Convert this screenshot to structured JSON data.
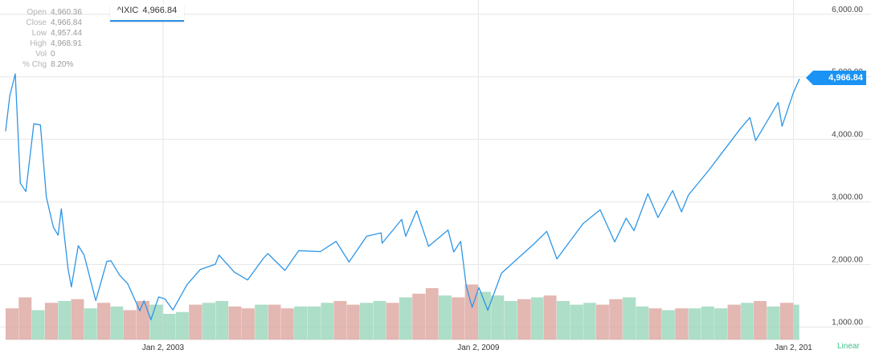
{
  "ohlc_panel": {
    "rows": [
      {
        "label": "Open",
        "value": "4,960.36"
      },
      {
        "label": "Close",
        "value": "4,966.84"
      },
      {
        "label": "Low",
        "value": "4,957.44"
      },
      {
        "label": "High",
        "value": "4,968.91"
      },
      {
        "label": "Vol",
        "value": "0"
      },
      {
        "label": "% Chg",
        "value": "8.20%"
      }
    ]
  },
  "ticker": {
    "symbol": "^IXIC",
    "price": "4,966.84"
  },
  "price_flag": "4,966.84",
  "scale_mode": "Linear",
  "colors": {
    "line": "#2d96e6",
    "volume_up": "#9fd8bd",
    "volume_down": "#deaaa4",
    "grid": "#e6e6e6",
    "flag": "#1a93f5"
  },
  "chart_data": {
    "type": "line",
    "series": [
      {
        "x": [
          "2000-01-03",
          "2000-02-01",
          "2000-03-10",
          "2000-04-14",
          "2000-05-23",
          "2000-07-17",
          "2000-09-01",
          "2000-10-12",
          "2000-11-30",
          "2001-01-02",
          "2001-01-24",
          "2001-03-12",
          "2001-04-04",
          "2001-05-22",
          "2001-07-02",
          "2001-09-21",
          "2001-12-07",
          "2002-01-04",
          "2002-03-05",
          "2002-05-01",
          "2002-07-24",
          "2002-08-22",
          "2002-10-09",
          "2002-12-02",
          "2003-01-14",
          "2003-03-11",
          "2003-06-18",
          "2003-09-18",
          "2003-12-31",
          "2004-01-26",
          "2004-05-10",
          "2004-08-12",
          "2004-11-30",
          "2004-12-30",
          "2005-04-28",
          "2005-08-02",
          "2005-12-30",
          "2006-04-19",
          "2006-07-18",
          "2006-11-17",
          "2007-02-26",
          "2007-03-05",
          "2007-07-19",
          "2007-08-16",
          "2007-10-31",
          "2008-01-22",
          "2008-06-05",
          "2008-07-15",
          "2008-09-01",
          "2008-10-10",
          "2008-11-20",
          "2009-01-06",
          "2009-03-09",
          "2009-06-12",
          "2010-01-19",
          "2010-04-23",
          "2010-07-02",
          "2010-12-31",
          "2011-04-29",
          "2011-08-08",
          "2011-10-27",
          "2011-12-20",
          "2012-03-26",
          "2012-06-04",
          "2012-09-14",
          "2012-11-15",
          "2013-01-02",
          "2013-05-21",
          "2013-12-31",
          "2014-03-05",
          "2014-04-14",
          "2014-09-18",
          "2014-10-15",
          "2014-12-31",
          "2015-02-13"
        ],
        "y": [
          4130,
          4700,
          5048,
          3300,
          3165,
          4250,
          4230,
          3075,
          2597,
          2470,
          2890,
          1930,
          1640,
          2300,
          2150,
          1423,
          2050,
          2060,
          1830,
          1690,
          1260,
          1420,
          1114,
          1480,
          1450,
          1272,
          1680,
          1920,
          2003,
          2150,
          1880,
          1752,
          2100,
          2175,
          1905,
          2220,
          2205,
          2370,
          2040,
          2450,
          2505,
          2340,
          2720,
          2450,
          2860,
          2290,
          2550,
          2200,
          2370,
          1650,
          1316,
          1630,
          1268,
          1860,
          2320,
          2530,
          2090,
          2653,
          2874,
          2360,
          2740,
          2540,
          3130,
          2750,
          3180,
          2840,
          3110,
          3500,
          4177,
          4350,
          3980,
          4590,
          4210,
          4736,
          4966.84
        ]
      }
    ],
    "volume": [
      {
        "date": "2000-01-03",
        "value": 1.7,
        "up": false
      },
      {
        "date": "2000-04-03",
        "value": 2.3,
        "up": false
      },
      {
        "date": "2000-07-03",
        "value": 1.6,
        "up": true
      },
      {
        "date": "2000-10-02",
        "value": 2.0,
        "up": false
      },
      {
        "date": "2001-01-02",
        "value": 2.1,
        "up": true
      },
      {
        "date": "2001-04-02",
        "value": 2.2,
        "up": false
      },
      {
        "date": "2001-07-02",
        "value": 1.7,
        "up": true
      },
      {
        "date": "2001-10-01",
        "value": 2.0,
        "up": false
      },
      {
        "date": "2002-01-02",
        "value": 1.8,
        "up": true
      },
      {
        "date": "2002-04-01",
        "value": 1.6,
        "up": false
      },
      {
        "date": "2002-07-01",
        "value": 2.1,
        "up": false
      },
      {
        "date": "2002-10-01",
        "value": 1.9,
        "up": true
      },
      {
        "date": "2003-01-02",
        "value": 1.4,
        "up": true
      },
      {
        "date": "2003-04-01",
        "value": 1.5,
        "up": true
      },
      {
        "date": "2003-07-01",
        "value": 1.9,
        "up": false
      },
      {
        "date": "2003-10-01",
        "value": 2.0,
        "up": true
      },
      {
        "date": "2004-01-02",
        "value": 2.1,
        "up": true
      },
      {
        "date": "2004-04-01",
        "value": 1.8,
        "up": false
      },
      {
        "date": "2004-07-01",
        "value": 1.7,
        "up": false
      },
      {
        "date": "2004-10-01",
        "value": 1.9,
        "up": true
      },
      {
        "date": "2005-01-03",
        "value": 1.9,
        "up": false
      },
      {
        "date": "2005-04-01",
        "value": 1.7,
        "up": false
      },
      {
        "date": "2005-07-01",
        "value": 1.8,
        "up": true
      },
      {
        "date": "2005-10-03",
        "value": 1.8,
        "up": true
      },
      {
        "date": "2006-01-03",
        "value": 2.0,
        "up": true
      },
      {
        "date": "2006-04-03",
        "value": 2.1,
        "up": false
      },
      {
        "date": "2006-07-03",
        "value": 1.9,
        "up": false
      },
      {
        "date": "2006-10-02",
        "value": 2.0,
        "up": true
      },
      {
        "date": "2007-01-03",
        "value": 2.1,
        "up": true
      },
      {
        "date": "2007-04-02",
        "value": 2.0,
        "up": false
      },
      {
        "date": "2007-07-02",
        "value": 2.3,
        "up": true
      },
      {
        "date": "2007-10-01",
        "value": 2.5,
        "up": false
      },
      {
        "date": "2008-01-02",
        "value": 2.8,
        "up": false
      },
      {
        "date": "2008-04-01",
        "value": 2.4,
        "up": true
      },
      {
        "date": "2008-07-01",
        "value": 2.3,
        "up": false
      },
      {
        "date": "2008-10-01",
        "value": 3.0,
        "up": false
      },
      {
        "date": "2009-01-02",
        "value": 2.6,
        "up": true
      },
      {
        "date": "2009-04-01",
        "value": 2.4,
        "up": true
      },
      {
        "date": "2009-07-01",
        "value": 2.1,
        "up": true
      },
      {
        "date": "2009-10-01",
        "value": 2.2,
        "up": false
      },
      {
        "date": "2010-01-04",
        "value": 2.3,
        "up": true
      },
      {
        "date": "2010-04-01",
        "value": 2.4,
        "up": false
      },
      {
        "date": "2010-07-01",
        "value": 2.1,
        "up": true
      },
      {
        "date": "2010-10-01",
        "value": 1.9,
        "up": true
      },
      {
        "date": "2011-01-03",
        "value": 2.0,
        "up": true
      },
      {
        "date": "2011-04-01",
        "value": 1.9,
        "up": false
      },
      {
        "date": "2011-07-01",
        "value": 2.2,
        "up": false
      },
      {
        "date": "2011-10-03",
        "value": 2.3,
        "up": true
      },
      {
        "date": "2012-01-03",
        "value": 1.8,
        "up": true
      },
      {
        "date": "2012-04-02",
        "value": 1.7,
        "up": false
      },
      {
        "date": "2012-07-02",
        "value": 1.6,
        "up": true
      },
      {
        "date": "2012-10-01",
        "value": 1.7,
        "up": false
      },
      {
        "date": "2013-01-02",
        "value": 1.7,
        "up": true
      },
      {
        "date": "2013-04-01",
        "value": 1.8,
        "up": true
      },
      {
        "date": "2013-07-01",
        "value": 1.7,
        "up": true
      },
      {
        "date": "2013-10-01",
        "value": 1.9,
        "up": false
      },
      {
        "date": "2014-01-02",
        "value": 2.0,
        "up": true
      },
      {
        "date": "2014-04-01",
        "value": 2.1,
        "up": false
      },
      {
        "date": "2014-07-01",
        "value": 1.8,
        "up": true
      },
      {
        "date": "2014-10-01",
        "value": 2.0,
        "up": false
      },
      {
        "date": "2015-01-02",
        "value": 1.9,
        "up": true
      }
    ],
    "x_ticks": [
      {
        "date": "2003-01-02",
        "label": "Jan 2, 2003"
      },
      {
        "date": "2009-01-02",
        "label": "Jan 2, 2009"
      },
      {
        "date": "2015-01-02",
        "label": "Jan 2, 201"
      }
    ],
    "y_ticks": [
      {
        "value": 1000,
        "label": "1,000.00"
      },
      {
        "value": 2000,
        "label": "2,000.00"
      },
      {
        "value": 3000,
        "label": "3,000.00"
      },
      {
        "value": 4000,
        "label": "4,000.00"
      },
      {
        "value": 5000,
        "label": "5,000.00"
      },
      {
        "value": 6000,
        "label": "6,000.00"
      }
    ],
    "ylim": [
      800,
      6100
    ],
    "xlim": [
      "2000-01-03",
      "2015-02-13"
    ],
    "title": "",
    "xlabel": "",
    "ylabel": "",
    "grid": true
  }
}
